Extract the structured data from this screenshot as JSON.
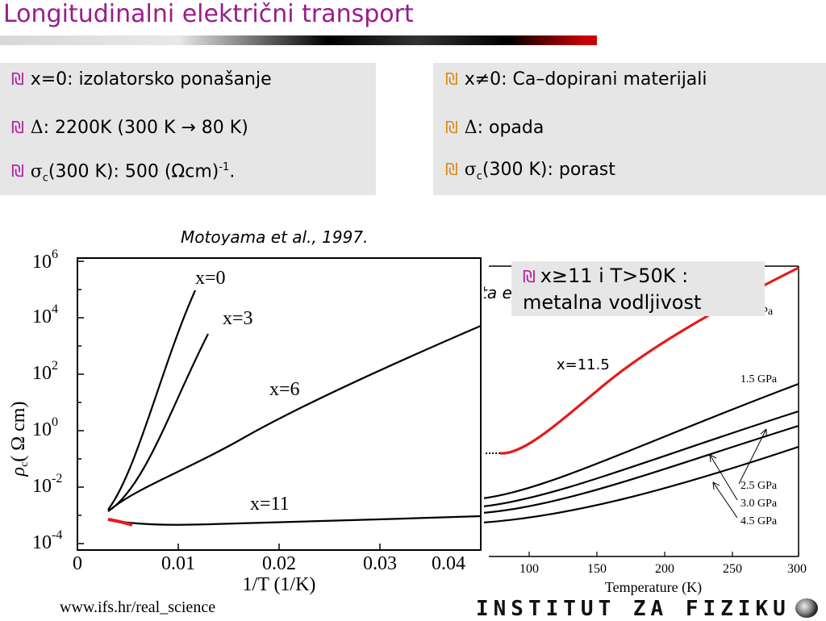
{
  "title": "Longitudinalni električni transport",
  "left_box": {
    "lines": [
      {
        "text": "x=0:  izolatorsko ponašanje"
      },
      {
        "prefix": "Δ",
        "text": ":   2200K (300 K → 80 K)"
      },
      {
        "prefix": "σ",
        "sub": "c",
        "text": "(300 K): 500 (Ωcm)",
        "sup": "-1",
        "suffix": "."
      }
    ]
  },
  "right_box": {
    "lines": [
      {
        "text": "x≠0: Ca–dopirani materijali"
      },
      {
        "prefix": "Δ",
        "text": ":   opada"
      },
      {
        "prefix": "σ",
        "sub": "c",
        "text": "(300 K):  porast"
      }
    ]
  },
  "bullet_glyph": "₪",
  "citation": "Motoyama et al., 1997.",
  "left_plot": {
    "ylabel_rho": "ρ",
    "ylabel_sub": "c",
    "ylabel_rest": "( Ω cm)",
    "xlabel": "1/T (1/K)",
    "y_ticks": [
      "10",
      "10",
      "10",
      "10",
      "10",
      "10"
    ],
    "y_exps": [
      "6",
      "4",
      "2",
      "0",
      "-2",
      "-4"
    ],
    "x_ticks": [
      "0",
      "0.01",
      "0.02",
      "0.03",
      "0.04"
    ],
    "curve_labels": [
      "x=0",
      "x=3",
      "x=6",
      "x=11"
    ]
  },
  "right_plot": {
    "xlabel": "Temperature (K)",
    "x_ticks": [
      "100",
      "150",
      "200",
      "250",
      "300"
    ],
    "pressure_labels": [
      "GPa",
      "1.5 GPa",
      "2.5 GPa",
      "3.0 GPa",
      "4.5 GPa"
    ],
    "partial_text": "ta e"
  },
  "callout": {
    "line1": "x≥11 i T>50K :",
    "line2": "metalna vodljivost"
  },
  "x115_label": "x=11.5",
  "footer": {
    "url": "www.ifs.hr/real_science",
    "brand": "INSTITUT ZA FIZIKU"
  },
  "colors": {
    "title": "#9a1b8c",
    "bullet_left": "#b0209e",
    "bullet_right": "#d98b1b",
    "box_bg": "#e6e6e6",
    "highlight_curve": "#e41b1b"
  }
}
